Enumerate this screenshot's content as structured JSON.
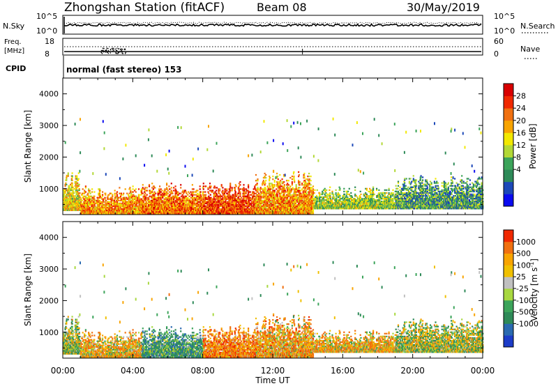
{
  "header": {
    "station": "Zhongshan Station (fitACF)",
    "beam": "Beam 08",
    "date": "30/May/2019"
  },
  "status_panels": {
    "nsky_label": "N.Sky",
    "nsky_ticks": [
      "10^5",
      "10^0"
    ],
    "nsearch_label": "N.Search",
    "nsearch_ticks": [
      "10^5",
      "10^0"
    ],
    "freq_label": "Freq.",
    "freq_unit": "[MHz]",
    "freq_ticks": [
      "18",
      "8"
    ],
    "nave_label": "Nave",
    "nave_ticks": [
      "60",
      "0"
    ],
    "cpid_label": "CPID",
    "cpid_text": "normal (fast stereo) 153"
  },
  "axes": {
    "xlabel": "Time UT",
    "x_ticks": [
      "00:00",
      "04:00",
      "08:00",
      "12:00",
      "16:00",
      "20:00",
      "00:00"
    ],
    "ylabel": "Slant Range [km]",
    "y_ticks": [
      "4000",
      "3000",
      "2000",
      "1000"
    ]
  },
  "colorbars": {
    "power_label": "Power [dB]",
    "power_ticks": [
      "28",
      "24",
      "20",
      "16",
      "12",
      "8",
      "4"
    ],
    "power_colors": [
      "#0a0af0",
      "#1c48b8",
      "#2e8a58",
      "#3ca45a",
      "#b2d836",
      "#f2e800",
      "#f8a400",
      "#f07010",
      "#f02800",
      "#d80000"
    ],
    "velocity_label": "Velocity [m s",
    "velocity_label_sup": "-1",
    "velocity_label_end": "]",
    "velocity_ticks": [
      "1000",
      "500",
      "100",
      "25",
      "-25",
      "-100",
      "-500",
      "-1000"
    ],
    "velocity_colors": [
      "#1c3cc8",
      "#2a6ab0",
      "#2e8a58",
      "#3ca45a",
      "#a8d840",
      "#c0c0c0",
      "#f0c000",
      "#f8a400",
      "#f07010",
      "#f02800"
    ]
  },
  "chart_data": [
    {
      "type": "heatmap",
      "panel": "power",
      "title": "",
      "xlabel": "Time UT",
      "ylabel": "Slant Range [km]",
      "x_range_hours": [
        0,
        24
      ],
      "y_range_km": [
        180,
        4500
      ],
      "colorbar": "Power [dB]",
      "scatter_bands": [
        {
          "t_start": 0.0,
          "t_end": 1.0,
          "range_min": 300,
          "range_max": 1300,
          "level": 18
        },
        {
          "t_start": 1.0,
          "t_end": 4.5,
          "range_min": 200,
          "range_max": 900,
          "level": 22
        },
        {
          "t_start": 4.5,
          "t_end": 8.0,
          "range_min": 200,
          "range_max": 1000,
          "level": 24
        },
        {
          "t_start": 8.0,
          "t_end": 11.0,
          "range_min": 200,
          "range_max": 1000,
          "level": 26
        },
        {
          "t_start": 11.0,
          "t_end": 14.3,
          "range_min": 200,
          "range_max": 1300,
          "level": 22
        },
        {
          "t_start": 14.3,
          "t_end": 19.0,
          "range_min": 350,
          "range_max": 900,
          "level": 14
        },
        {
          "t_start": 19.0,
          "t_end": 24.0,
          "range_min": 350,
          "range_max": 1200,
          "level": 10
        }
      ]
    },
    {
      "type": "heatmap",
      "panel": "velocity",
      "title": "",
      "xlabel": "Time UT",
      "ylabel": "Slant Range [km]",
      "x_range_hours": [
        0,
        24
      ],
      "y_range_km": [
        180,
        4500
      ],
      "colorbar": "Velocity [m s-1]",
      "scatter_bands": [
        {
          "t_start": 0.0,
          "t_end": 1.0,
          "range_min": 300,
          "range_max": 1300,
          "level": 80
        },
        {
          "t_start": 1.0,
          "t_end": 4.5,
          "range_min": 200,
          "range_max": 900,
          "level": -150
        },
        {
          "t_start": 4.5,
          "t_end": 8.0,
          "range_min": 200,
          "range_max": 1000,
          "level": 300
        },
        {
          "t_start": 8.0,
          "t_end": 11.0,
          "range_min": 200,
          "range_max": 1000,
          "level": -300
        },
        {
          "t_start": 11.0,
          "t_end": 14.3,
          "range_min": 200,
          "range_max": 1300,
          "level": -200
        },
        {
          "t_start": 14.3,
          "t_end": 19.0,
          "range_min": 350,
          "range_max": 900,
          "level": -150
        },
        {
          "t_start": 19.0,
          "t_end": 24.0,
          "range_min": 350,
          "range_max": 1200,
          "level": 50
        }
      ]
    }
  ]
}
